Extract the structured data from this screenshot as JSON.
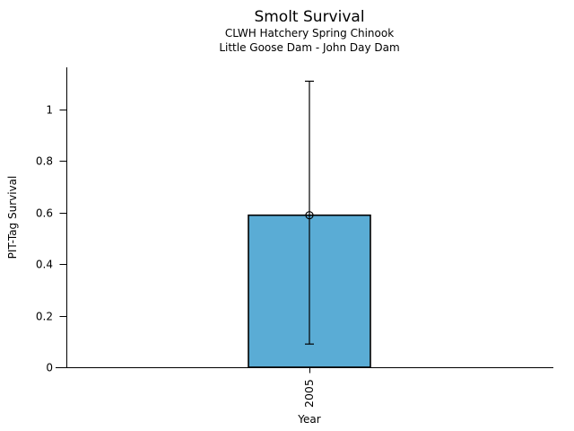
{
  "figure": {
    "background": "#ffffff"
  },
  "chart_data": {
    "type": "bar",
    "title": "Smolt Survival",
    "subtitle": [
      "CLWH Hatchery Spring Chinook",
      "Little Goose Dam - John Day Dam"
    ],
    "xlabel": "Year",
    "ylabel": "PIT-Tag Survival",
    "categories": [
      "2005"
    ],
    "series": [
      {
        "name": "PIT-Tag Survival",
        "values": [
          0.59
        ]
      }
    ],
    "error_bars": {
      "low": [
        0.09
      ],
      "high": [
        1.11
      ]
    },
    "marker": "open-circle",
    "ytick_values": [
      0,
      0.2,
      0.4,
      0.6,
      0.8,
      1
    ],
    "ytick_labels": [
      "0",
      "0.2",
      "0.4",
      "0.6",
      "0.8",
      "1"
    ],
    "ylim": [
      0,
      1.17
    ],
    "xtick_rotation_deg": 90,
    "grid": false,
    "legend": false,
    "colors": {
      "bar_fill": "#5aacd5",
      "bar_edge": "#000000",
      "error_bar": "#000000",
      "axis": "#000000",
      "text": "#000000"
    }
  }
}
